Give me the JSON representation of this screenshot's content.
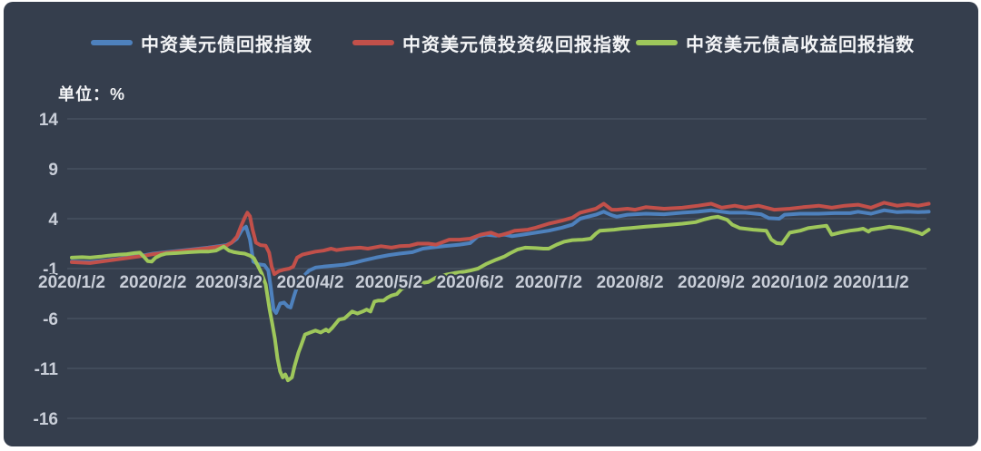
{
  "panel": {
    "background": "#353e4d",
    "frame_color": "#ffffff",
    "gridline_color": "#4b5464",
    "tick_color": "#c9ced8"
  },
  "chart_data": {
    "type": "line",
    "unit": "单位：%",
    "grid": true,
    "legend_position": "top",
    "x_axis": {
      "tick_labels": [
        "2020/1/2",
        "2020/2/2",
        "2020/3/2",
        "2020/4/2",
        "2020/5/2",
        "2020/6/2",
        "2020/7/2",
        "2020/8/2",
        "2020/9/2",
        "2020/10/2",
        "2020/11/2"
      ],
      "tick_day_offsets": [
        0,
        31,
        60,
        91,
        121,
        152,
        182,
        213,
        244,
        274,
        305
      ],
      "day_span": [
        0,
        327
      ]
    },
    "y_axis": {
      "ticks": [
        14,
        9,
        4,
        -1,
        -6,
        -11,
        -16
      ],
      "min": -16,
      "max": 14
    },
    "series": [
      {
        "key": "total-return",
        "name": "中资美元债回报指数",
        "color": "#4e81bd",
        "points": [
          [
            0,
            -0.3
          ],
          [
            7,
            -0.35
          ],
          [
            14,
            -0.15
          ],
          [
            21,
            0.1
          ],
          [
            28,
            0.35
          ],
          [
            31,
            0.5
          ],
          [
            38,
            0.7
          ],
          [
            45,
            0.9
          ],
          [
            52,
            1.1
          ],
          [
            59,
            1.35
          ],
          [
            61,
            1.6
          ],
          [
            63,
            2.0
          ],
          [
            65,
            2.9
          ],
          [
            66.5,
            3.2
          ],
          [
            68,
            1.9
          ],
          [
            69.3,
            -0.3
          ],
          [
            71,
            -0.55
          ],
          [
            73.5,
            -0.65
          ],
          [
            75,
            -1.2
          ],
          [
            76,
            -3.0
          ],
          [
            77,
            -5.1
          ],
          [
            78,
            -5.45
          ],
          [
            79.5,
            -4.5
          ],
          [
            81,
            -4.4
          ],
          [
            82.5,
            -4.8
          ],
          [
            83.5,
            -4.9
          ],
          [
            85,
            -3.6
          ],
          [
            86.5,
            -2.4
          ],
          [
            88,
            -1.9
          ],
          [
            90.5,
            -1.2
          ],
          [
            93,
            -0.9
          ],
          [
            96,
            -0.8
          ],
          [
            100,
            -0.7
          ],
          [
            104,
            -0.6
          ],
          [
            108,
            -0.4
          ],
          [
            111,
            -0.2
          ],
          [
            116,
            0.1
          ],
          [
            121,
            0.35
          ],
          [
            125,
            0.5
          ],
          [
            130,
            0.65
          ],
          [
            134,
            1.0
          ],
          [
            137,
            1.1
          ],
          [
            142,
            1.25
          ],
          [
            148,
            1.4
          ],
          [
            152,
            1.55
          ],
          [
            155,
            2.25
          ],
          [
            158,
            2.4
          ],
          [
            162,
            2.3
          ],
          [
            165,
            2.4
          ],
          [
            168,
            2.25
          ],
          [
            172,
            2.4
          ],
          [
            177,
            2.6
          ],
          [
            182,
            2.8
          ],
          [
            187,
            3.1
          ],
          [
            191,
            3.4
          ],
          [
            194,
            4.0
          ],
          [
            200,
            4.4
          ],
          [
            203,
            4.7
          ],
          [
            206,
            4.35
          ],
          [
            208,
            4.2
          ],
          [
            212,
            4.4
          ],
          [
            219,
            4.5
          ],
          [
            226,
            4.45
          ],
          [
            233,
            4.6
          ],
          [
            239,
            4.7
          ],
          [
            244,
            4.85
          ],
          [
            248,
            4.7
          ],
          [
            251,
            4.6
          ],
          [
            257,
            4.6
          ],
          [
            263,
            4.45
          ],
          [
            266,
            4.05
          ],
          [
            270,
            4.0
          ],
          [
            272,
            4.4
          ],
          [
            278,
            4.5
          ],
          [
            285,
            4.5
          ],
          [
            291,
            4.55
          ],
          [
            297,
            4.55
          ],
          [
            300,
            4.7
          ],
          [
            305,
            4.5
          ],
          [
            310,
            4.85
          ],
          [
            315,
            4.65
          ],
          [
            319,
            4.7
          ],
          [
            323,
            4.65
          ],
          [
            327,
            4.7
          ]
        ]
      },
      {
        "key": "investment-grade",
        "name": "中资美元债投资级回报指数",
        "color": "#c2504a",
        "points": [
          [
            0,
            -0.35
          ],
          [
            7,
            -0.45
          ],
          [
            14,
            -0.2
          ],
          [
            21,
            0.05
          ],
          [
            28,
            0.3
          ],
          [
            31,
            0.45
          ],
          [
            38,
            0.65
          ],
          [
            45,
            0.85
          ],
          [
            52,
            1.05
          ],
          [
            59,
            1.3
          ],
          [
            61,
            1.6
          ],
          [
            63,
            2.2
          ],
          [
            64.5,
            3.2
          ],
          [
            66,
            4.1
          ],
          [
            67,
            4.6
          ],
          [
            68,
            4.25
          ],
          [
            69,
            2.9
          ],
          [
            70.3,
            1.6
          ],
          [
            72,
            1.35
          ],
          [
            74,
            1.3
          ],
          [
            75.3,
            0.6
          ],
          [
            76.3,
            -0.8
          ],
          [
            77.3,
            -1.55
          ],
          [
            79,
            -1.25
          ],
          [
            81,
            -1.1
          ],
          [
            83,
            -1.0
          ],
          [
            84.5,
            -0.8
          ],
          [
            86,
            0.1
          ],
          [
            88,
            0.4
          ],
          [
            90.5,
            0.55
          ],
          [
            93,
            0.7
          ],
          [
            96,
            0.8
          ],
          [
            99,
            1.0
          ],
          [
            101,
            0.85
          ],
          [
            105,
            1.0
          ],
          [
            110,
            1.1
          ],
          [
            113,
            1.0
          ],
          [
            118,
            1.25
          ],
          [
            122,
            1.1
          ],
          [
            125,
            1.25
          ],
          [
            129,
            1.3
          ],
          [
            132,
            1.5
          ],
          [
            136,
            1.5
          ],
          [
            139,
            1.4
          ],
          [
            144,
            1.9
          ],
          [
            148,
            1.9
          ],
          [
            152,
            2.0
          ],
          [
            156,
            2.4
          ],
          [
            160,
            2.6
          ],
          [
            163,
            2.3
          ],
          [
            167,
            2.6
          ],
          [
            169,
            2.8
          ],
          [
            174,
            2.9
          ],
          [
            177,
            3.1
          ],
          [
            182,
            3.5
          ],
          [
            187,
            3.8
          ],
          [
            191,
            4.1
          ],
          [
            194,
            4.6
          ],
          [
            200,
            5.0
          ],
          [
            203,
            5.5
          ],
          [
            206,
            4.9
          ],
          [
            208,
            4.9
          ],
          [
            212,
            5.0
          ],
          [
            215,
            4.9
          ],
          [
            219,
            5.15
          ],
          [
            226,
            5.0
          ],
          [
            233,
            5.1
          ],
          [
            239,
            5.3
          ],
          [
            244,
            5.5
          ],
          [
            248,
            5.1
          ],
          [
            253,
            5.3
          ],
          [
            257,
            5.1
          ],
          [
            262,
            5.3
          ],
          [
            268,
            4.9
          ],
          [
            274,
            5.0
          ],
          [
            279,
            5.15
          ],
          [
            285,
            5.3
          ],
          [
            290,
            5.1
          ],
          [
            295,
            5.3
          ],
          [
            300,
            5.4
          ],
          [
            305,
            5.1
          ],
          [
            310,
            5.6
          ],
          [
            315,
            5.3
          ],
          [
            319,
            5.45
          ],
          [
            323,
            5.3
          ],
          [
            327,
            5.5
          ]
        ]
      },
      {
        "key": "high-yield",
        "name": "中资美元债高收益回报指数",
        "color": "#9ec75b",
        "points": [
          [
            0,
            0.1
          ],
          [
            4,
            0.15
          ],
          [
            7,
            0.1
          ],
          [
            11,
            0.2
          ],
          [
            14,
            0.3
          ],
          [
            18,
            0.4
          ],
          [
            21,
            0.45
          ],
          [
            24,
            0.55
          ],
          [
            26,
            0.6
          ],
          [
            27.5,
            0.2
          ],
          [
            29,
            -0.25
          ],
          [
            30.5,
            -0.3
          ],
          [
            32,
            0.1
          ],
          [
            34,
            0.35
          ],
          [
            36,
            0.5
          ],
          [
            40,
            0.55
          ],
          [
            45,
            0.65
          ],
          [
            49,
            0.7
          ],
          [
            52,
            0.7
          ],
          [
            55,
            0.8
          ],
          [
            56.5,
            1.0
          ],
          [
            58,
            1.2
          ],
          [
            60,
            0.8
          ],
          [
            62,
            0.65
          ],
          [
            64,
            0.55
          ],
          [
            66,
            0.5
          ],
          [
            68,
            0.3
          ],
          [
            69.5,
            0.05
          ],
          [
            71,
            -0.7
          ],
          [
            72.5,
            -1.5
          ],
          [
            74,
            -2.6
          ],
          [
            75.5,
            -5.1
          ],
          [
            76.5,
            -6.5
          ],
          [
            77.5,
            -8.0
          ],
          [
            78.5,
            -10.0
          ],
          [
            79.5,
            -11.3
          ],
          [
            80.5,
            -11.9
          ],
          [
            81.5,
            -11.6
          ],
          [
            82.5,
            -12.2
          ],
          [
            84,
            -11.9
          ],
          [
            85,
            -10.8
          ],
          [
            86.5,
            -9.4
          ],
          [
            87.5,
            -8.7
          ],
          [
            89,
            -7.6
          ],
          [
            91,
            -7.4
          ],
          [
            93,
            -7.2
          ],
          [
            95,
            -7.4
          ],
          [
            97,
            -7.1
          ],
          [
            98,
            -7.3
          ],
          [
            99.5,
            -6.9
          ],
          [
            102,
            -6.1
          ],
          [
            104,
            -6.0
          ],
          [
            107,
            -5.3
          ],
          [
            109,
            -5.5
          ],
          [
            111,
            -5.3
          ],
          [
            112.5,
            -5.1
          ],
          [
            114,
            -5.3
          ],
          [
            115.5,
            -4.3
          ],
          [
            117,
            -4.2
          ],
          [
            119,
            -4.2
          ],
          [
            120.5,
            -3.9
          ],
          [
            122,
            -3.7
          ],
          [
            124,
            -3.55
          ],
          [
            126,
            -3.0
          ],
          [
            128,
            -2.8
          ],
          [
            130,
            -2.6
          ],
          [
            132,
            -2.5
          ],
          [
            136,
            -2.35
          ],
          [
            139,
            -1.9
          ],
          [
            143,
            -1.6
          ],
          [
            146,
            -1.45
          ],
          [
            150,
            -1.3
          ],
          [
            152,
            -1.2
          ],
          [
            155,
            -1.0
          ],
          [
            158,
            -0.55
          ],
          [
            162,
            -0.1
          ],
          [
            165,
            0.2
          ],
          [
            167,
            0.5
          ],
          [
            170,
            0.9
          ],
          [
            173,
            1.1
          ],
          [
            177,
            1.05
          ],
          [
            180,
            1.0
          ],
          [
            182,
            1.0
          ],
          [
            185,
            1.4
          ],
          [
            188,
            1.7
          ],
          [
            191,
            1.85
          ],
          [
            195,
            1.9
          ],
          [
            198,
            2.0
          ],
          [
            200,
            2.5
          ],
          [
            201.5,
            2.8
          ],
          [
            204,
            2.85
          ],
          [
            207,
            2.9
          ],
          [
            210,
            3.0
          ],
          [
            213,
            3.05
          ],
          [
            219,
            3.2
          ],
          [
            226,
            3.35
          ],
          [
            233,
            3.5
          ],
          [
            238,
            3.65
          ],
          [
            241,
            3.9
          ],
          [
            244,
            4.1
          ],
          [
            246.5,
            4.2
          ],
          [
            250,
            3.9
          ],
          [
            252,
            3.4
          ],
          [
            255,
            3.05
          ],
          [
            260,
            2.9
          ],
          [
            265,
            2.8
          ],
          [
            267,
            1.9
          ],
          [
            269,
            1.55
          ],
          [
            271,
            1.5
          ],
          [
            274,
            2.6
          ],
          [
            278,
            2.8
          ],
          [
            281,
            3.05
          ],
          [
            285,
            3.2
          ],
          [
            288,
            3.3
          ],
          [
            290,
            2.4
          ],
          [
            293,
            2.6
          ],
          [
            297,
            2.8
          ],
          [
            300,
            2.9
          ],
          [
            302,
            3.0
          ],
          [
            304,
            2.7
          ],
          [
            305,
            2.9
          ],
          [
            309,
            3.05
          ],
          [
            312,
            3.2
          ],
          [
            316,
            3.05
          ],
          [
            319,
            2.9
          ],
          [
            323,
            2.6
          ],
          [
            324.5,
            2.45
          ],
          [
            327,
            2.9
          ]
        ]
      }
    ]
  }
}
